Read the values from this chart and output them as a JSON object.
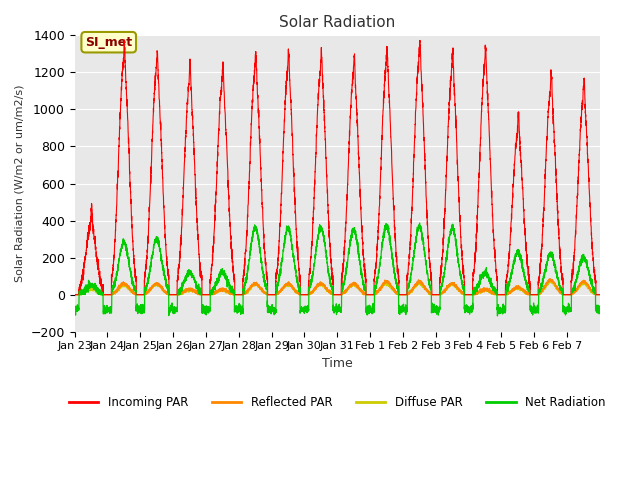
{
  "title": "Solar Radiation",
  "ylabel": "Solar Radiation (W/m2 or um/m2/s)",
  "xlabel": "Time",
  "ylim": [
    -200,
    1400
  ],
  "plot_bg_color": "#e8e8e8",
  "annotation_text": "SI_met",
  "annotation_color": "#8B0000",
  "annotation_bg": "#ffffcc",
  "annotation_border": "#999900",
  "x_tick_labels": [
    "Jan 23",
    "Jan 24",
    "Jan 25",
    "Jan 26",
    "Jan 27",
    "Jan 28",
    "Jan 29",
    "Jan 30",
    "Jan 31",
    "Feb 1",
    "Feb 2",
    "Feb 3",
    "Feb 4",
    "Feb 5",
    "Feb 6",
    "Feb 7"
  ],
  "legend_colors": [
    "#ff0000",
    "#ff8800",
    "#cccc00",
    "#00cc00"
  ],
  "num_days": 16,
  "points_per_day": 288,
  "incoming_peaks": [
    370,
    1240,
    1200,
    1130,
    1130,
    1200,
    1200,
    1200,
    1180,
    1220,
    1260,
    1200,
    1220,
    870,
    1090,
    1050
  ],
  "reflected_peaks": [
    50,
    60,
    60,
    30,
    30,
    60,
    60,
    60,
    60,
    70,
    70,
    60,
    30,
    40,
    80,
    70
  ],
  "diffuse_peaks": [
    30,
    50,
    55,
    25,
    25,
    55,
    55,
    55,
    55,
    60,
    60,
    55,
    25,
    35,
    70,
    60
  ],
  "net_peaks": [
    50,
    280,
    300,
    120,
    120,
    360,
    360,
    360,
    350,
    370,
    370,
    360,
    120,
    230,
    220,
    200
  ]
}
